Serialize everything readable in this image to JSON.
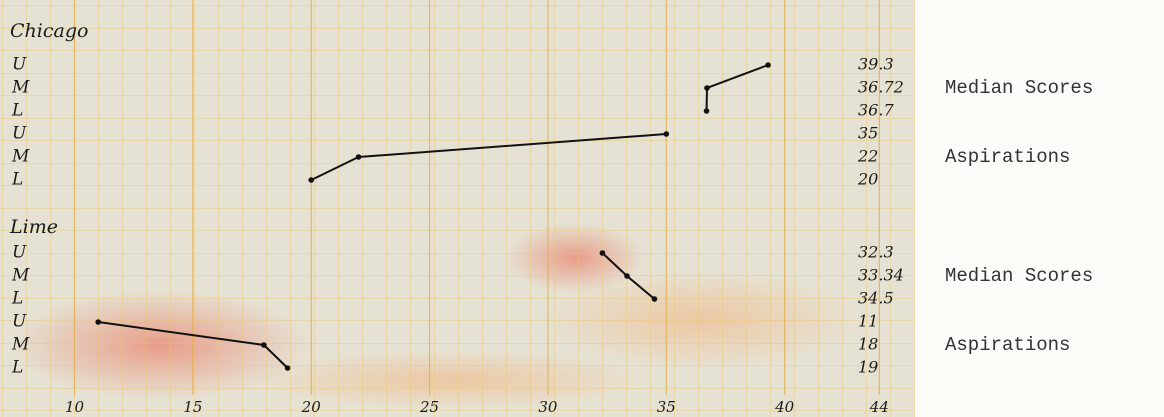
{
  "chart_data": {
    "type": "line",
    "xlim": [
      8.5,
      45
    ],
    "xticks": [
      10,
      15,
      20,
      25,
      30,
      35,
      40,
      44
    ],
    "panels": [
      {
        "title": "Chicago",
        "series": [
          {
            "name": "Median Scores",
            "color": "#111111",
            "categories": [
              "U",
              "M",
              "L"
            ],
            "values": [
              39.3,
              36.72,
              36.7
            ]
          },
          {
            "name": "Aspirations",
            "color": "#111111",
            "categories": [
              "U",
              "M",
              "L"
            ],
            "values": [
              35,
              22,
              20
            ]
          }
        ]
      },
      {
        "title": "Lime",
        "series": [
          {
            "name": "Median Scores",
            "color": "#111111",
            "categories": [
              "U",
              "M",
              "L"
            ],
            "values": [
              32.3,
              33.34,
              34.5
            ]
          },
          {
            "name": "Aspirations",
            "color": "#111111",
            "categories": [
              "U",
              "M",
              "L"
            ],
            "values": [
              11,
              18,
              19
            ]
          }
        ]
      }
    ]
  }
}
